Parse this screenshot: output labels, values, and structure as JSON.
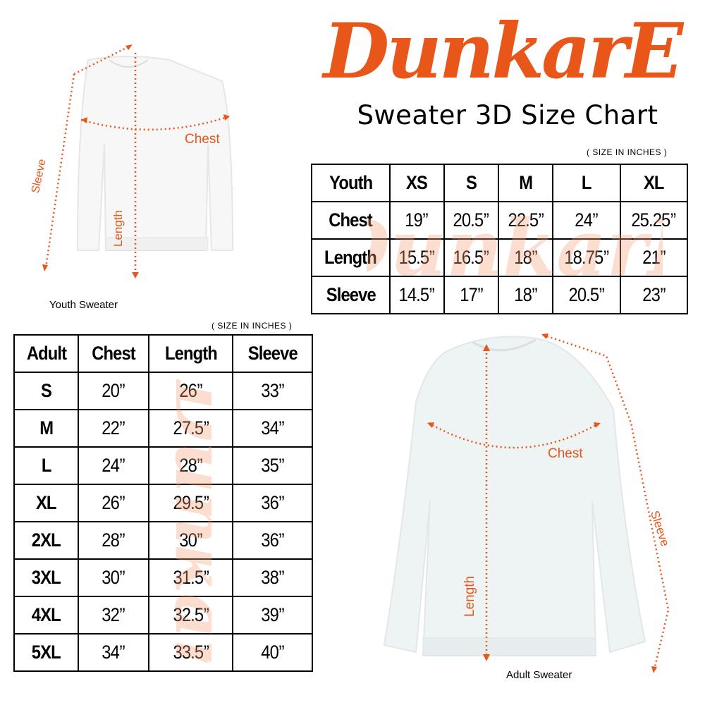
{
  "brand": {
    "logo_text": "DunkarE",
    "color": "#E8561A"
  },
  "title": "Sweater 3D Size Chart",
  "youth": {
    "units": "( SIZE IN INCHES )",
    "caption": "Youth Sweater",
    "diagram_labels": {
      "chest": "Chest",
      "length": "Length",
      "sleeve": "Sleeve"
    },
    "headers": [
      "Youth",
      "XS",
      "S",
      "M",
      "L",
      "XL"
    ],
    "rows": [
      [
        "Chest",
        "19’’",
        "20.5’’",
        "22.5’’",
        "24’’",
        "25.25’’"
      ],
      [
        "Length",
        "15.5’’",
        "16.5’’",
        "18’’",
        "18.75’’",
        "21’’"
      ],
      [
        "Sleeve",
        "14.5’’",
        "17’’",
        "18’’",
        "20.5’’",
        "23’’"
      ]
    ]
  },
  "adult": {
    "units": "( SIZE IN INCHES )",
    "caption": "Adult Sweater",
    "diagram_labels": {
      "chest": "Chest",
      "length": "Length",
      "sleeve": "Sleeve"
    },
    "headers": [
      "Adult",
      "Chest",
      "Length",
      "Sleeve"
    ],
    "rows": [
      [
        "S",
        "20’’",
        "26’’",
        "33’’"
      ],
      [
        "M",
        "22’’",
        "27.5’’",
        "34’’"
      ],
      [
        "L",
        "24’’",
        "28’’",
        "35’’"
      ],
      [
        "XL",
        "26’’",
        "29.5’’",
        "36’’"
      ],
      [
        "2XL",
        "28’’",
        "30’’",
        "36’’"
      ],
      [
        "3XL",
        "30’’",
        "31.5’’",
        "38’’"
      ],
      [
        "4XL",
        "32’’",
        "32.5’’",
        "39’’"
      ],
      [
        "5XL",
        "34’’",
        "33.5’’",
        "40’’"
      ]
    ]
  }
}
